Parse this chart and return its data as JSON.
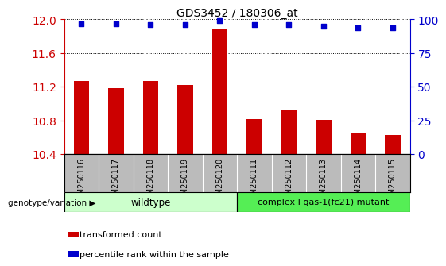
{
  "title": "GDS3452 / 180306_at",
  "categories": [
    "GSM250116",
    "GSM250117",
    "GSM250118",
    "GSM250119",
    "GSM250120",
    "GSM250111",
    "GSM250112",
    "GSM250113",
    "GSM250114",
    "GSM250115"
  ],
  "bar_values": [
    11.27,
    11.18,
    11.27,
    11.22,
    11.88,
    10.82,
    10.92,
    10.81,
    10.65,
    10.63
  ],
  "percentile_values": [
    97,
    97,
    96,
    96,
    99,
    96,
    96,
    95,
    94,
    94
  ],
  "ylim_left": [
    10.4,
    12.0
  ],
  "ylim_right": [
    0,
    100
  ],
  "yticks_left": [
    10.4,
    10.8,
    11.2,
    11.6,
    12.0
  ],
  "yticks_right": [
    0,
    25,
    50,
    75,
    100
  ],
  "bar_color": "#cc0000",
  "percentile_color": "#0000cc",
  "wildtype_label": "wildtype",
  "mutant_label": "complex I gas-1(fc21) mutant",
  "wildtype_color": "#ccffcc",
  "mutant_color": "#55ee55",
  "group_label": "genotype/variation",
  "legend_bar_label": "transformed count",
  "legend_perc_label": "percentile rank within the sample",
  "tick_color_left": "#cc0000",
  "tick_color_right": "#0000cc",
  "xtick_bg_color": "#bbbbbb",
  "plot_bg_color": "#ffffff",
  "bar_width": 0.45
}
